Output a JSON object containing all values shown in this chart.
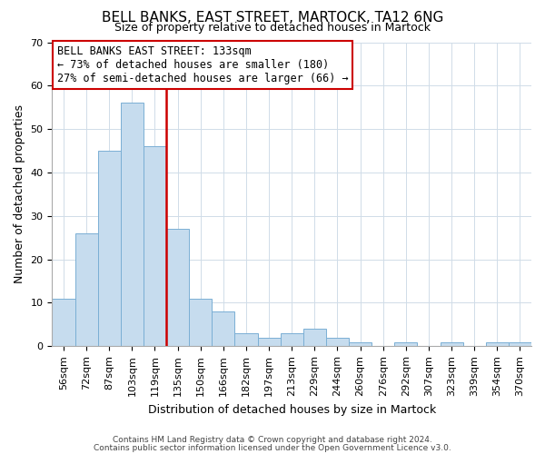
{
  "title": "BELL BANKS, EAST STREET, MARTOCK, TA12 6NG",
  "subtitle": "Size of property relative to detached houses in Martock",
  "xlabel": "Distribution of detached houses by size in Martock",
  "ylabel": "Number of detached properties",
  "bar_labels": [
    "56sqm",
    "72sqm",
    "87sqm",
    "103sqm",
    "119sqm",
    "135sqm",
    "150sqm",
    "166sqm",
    "182sqm",
    "197sqm",
    "213sqm",
    "229sqm",
    "244sqm",
    "260sqm",
    "276sqm",
    "292sqm",
    "307sqm",
    "323sqm",
    "339sqm",
    "354sqm",
    "370sqm"
  ],
  "bar_values": [
    11,
    26,
    45,
    56,
    46,
    27,
    11,
    8,
    3,
    2,
    3,
    4,
    2,
    1,
    0,
    1,
    0,
    1,
    0,
    1,
    1
  ],
  "bar_color": "#c6dcee",
  "bar_edge_color": "#7aafd4",
  "highlight_index": 5,
  "highlight_line_color": "#cc0000",
  "ylim": [
    0,
    70
  ],
  "yticks": [
    0,
    10,
    20,
    30,
    40,
    50,
    60,
    70
  ],
  "annotation_line1": "BELL BANKS EAST STREET: 133sqm",
  "annotation_line2": "← 73% of detached houses are smaller (180)",
  "annotation_line3": "27% of semi-detached houses are larger (66) →",
  "annotation_box_edge": "#cc0000",
  "footer1": "Contains HM Land Registry data © Crown copyright and database right 2024.",
  "footer2": "Contains public sector information licensed under the Open Government Licence v3.0.",
  "title_fontsize": 11,
  "subtitle_fontsize": 9,
  "ylabel_fontsize": 9,
  "xlabel_fontsize": 9,
  "tick_fontsize": 8,
  "annotation_fontsize": 8.5,
  "footer_fontsize": 6.5
}
